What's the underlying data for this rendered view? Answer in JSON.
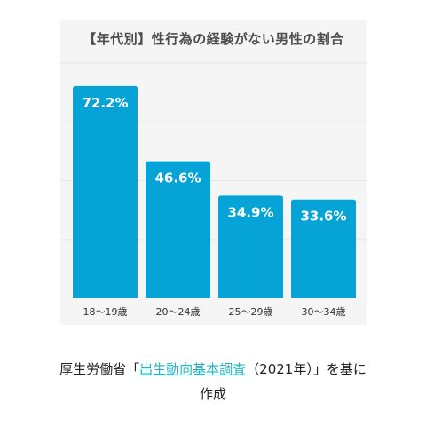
{
  "chart_data": {
    "type": "bar",
    "title": "【年代別】性行為の経験がない男性の割合",
    "categories": [
      "18〜19歳",
      "20〜24歳",
      "25〜29歳",
      "30〜34歳"
    ],
    "values": [
      72.2,
      46.6,
      34.9,
      33.6
    ],
    "value_labels": [
      "72.2%",
      "46.6%",
      "34.9%",
      "33.6%"
    ],
    "ylim": [
      0,
      80
    ],
    "grid": true,
    "bar_color": "#06a4d6",
    "label_color": "#ffffff"
  },
  "caption": {
    "prefix": "厚生労働省「",
    "link": "出生動向基本調査",
    "suffix": "（2021年）」を基に",
    "line2": "作成"
  },
  "colors": {
    "panel_bg": "#f5f5f5",
    "link": "#22b5c4"
  }
}
